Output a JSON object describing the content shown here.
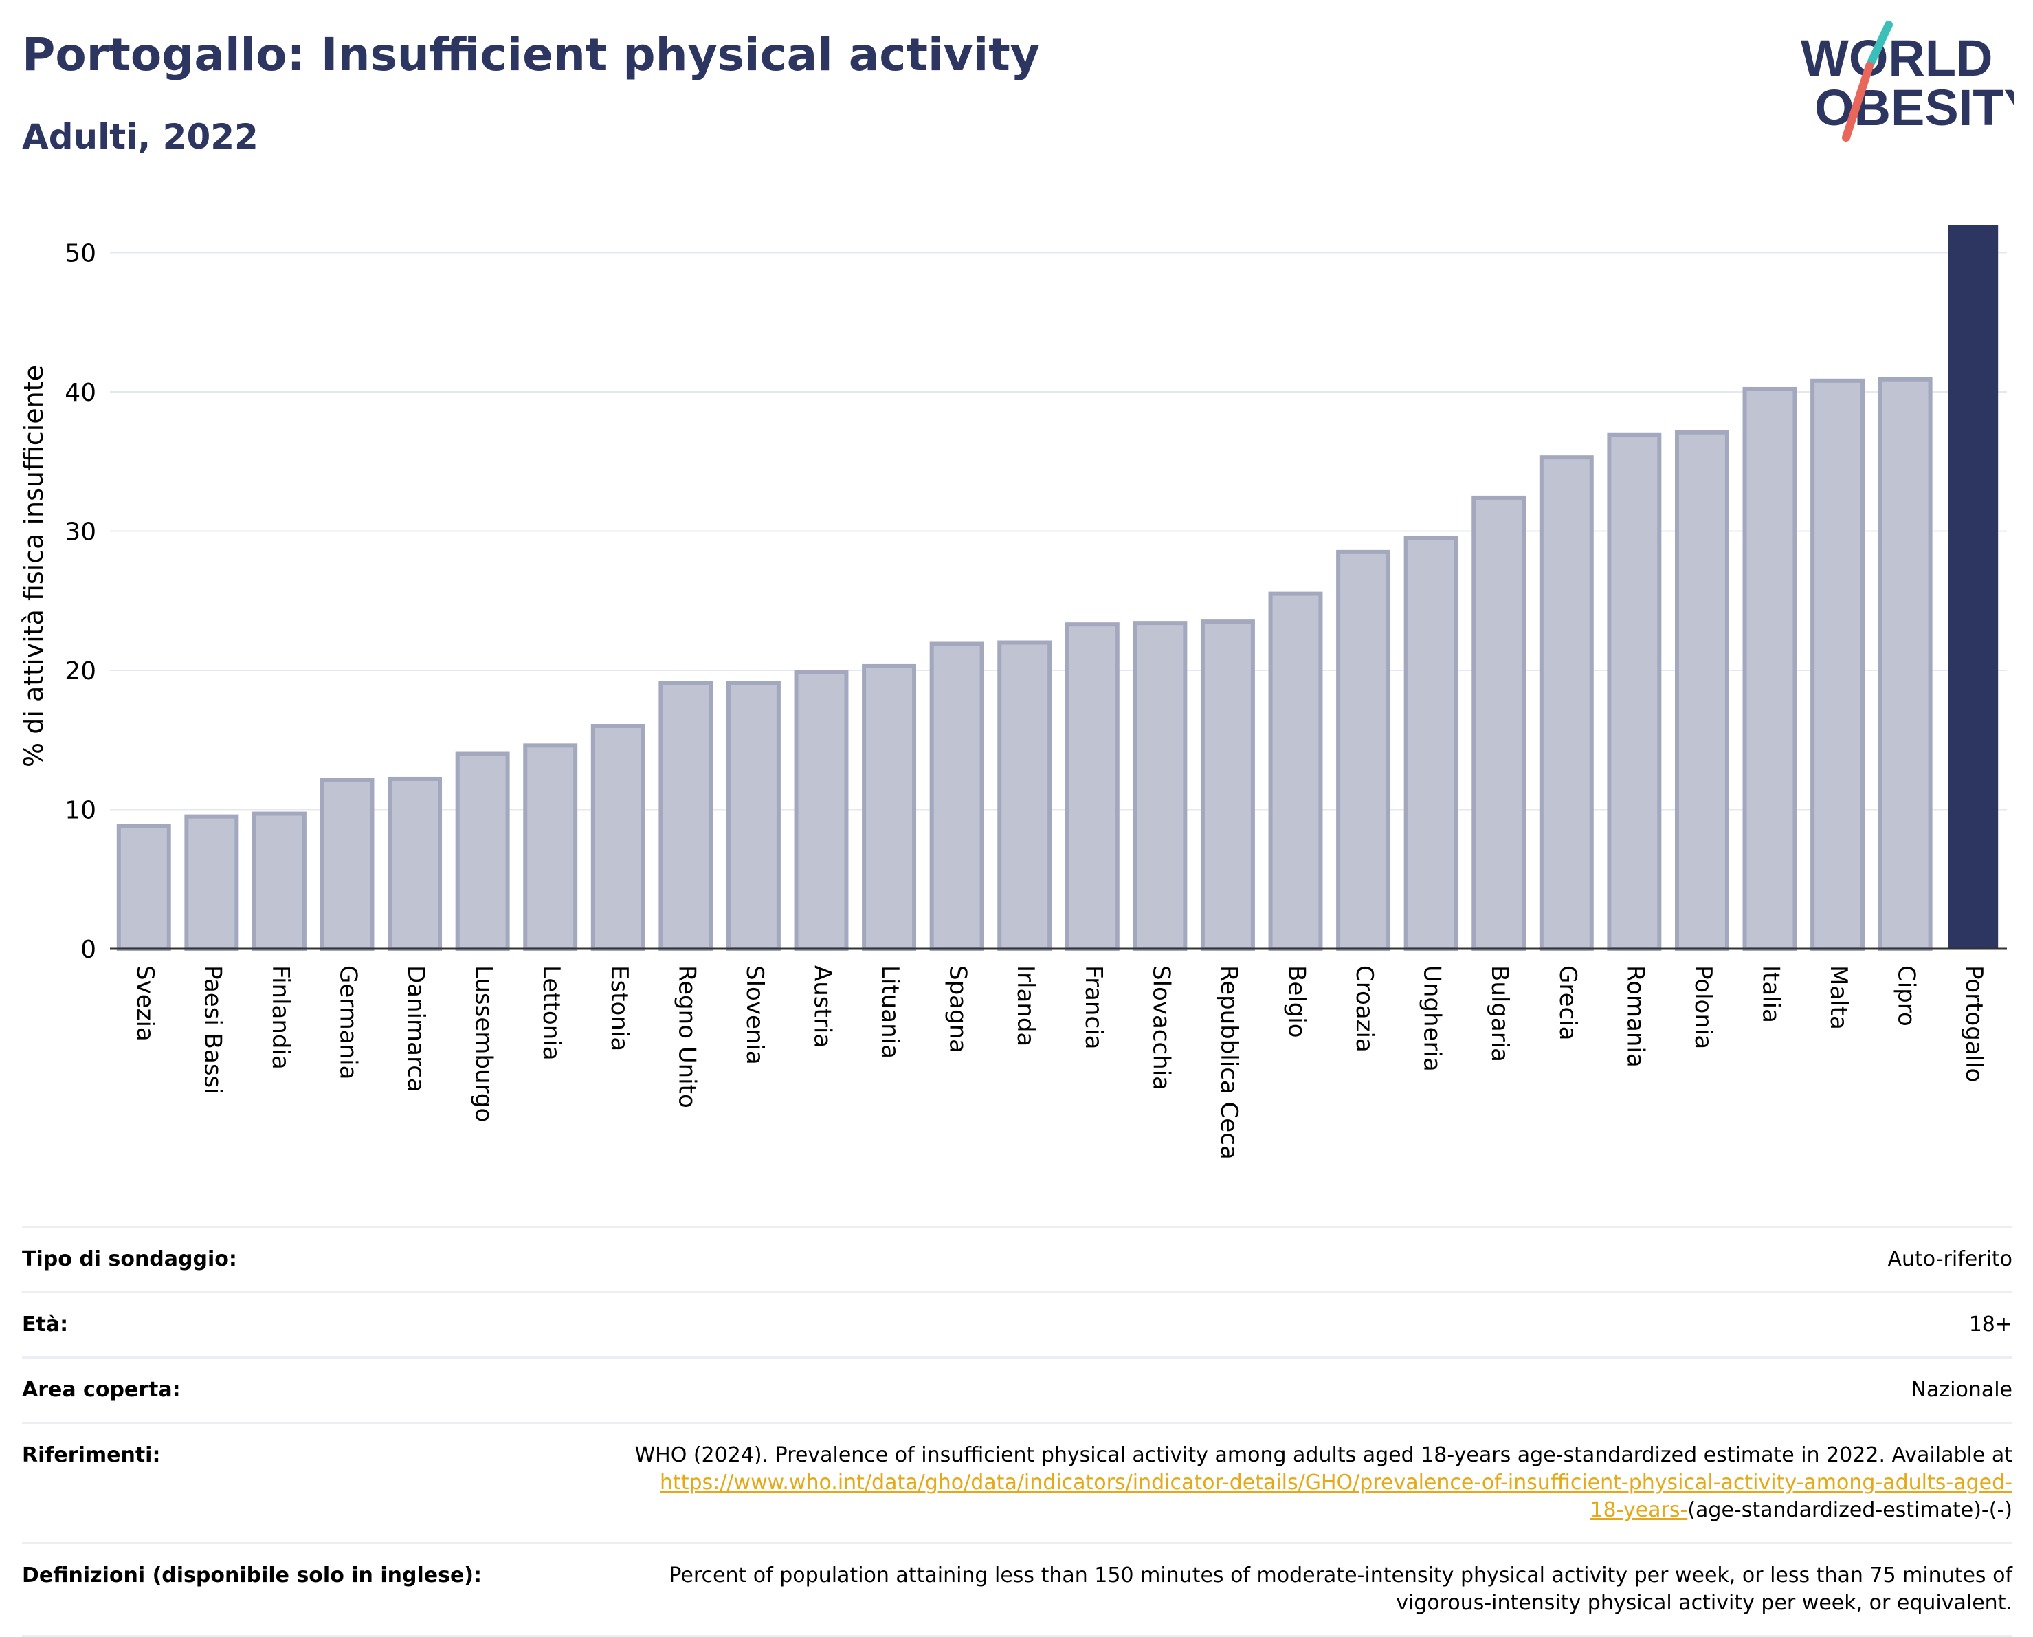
{
  "header": {
    "title": "Portogallo: Insufficient physical activity",
    "subtitle": "Adulti, 2022"
  },
  "logo": {
    "line1": "WORLD",
    "line2": "OBESITY",
    "colors": {
      "text": "#2d3660",
      "slash_teal": "#3bbfb8",
      "slash_coral": "#e8665a"
    }
  },
  "chart_data": {
    "type": "bar",
    "ylabel": "% di attività fisica insufficiente",
    "xlabel": "",
    "ylim": [
      0,
      52
    ],
    "yticks": [
      0,
      10,
      20,
      30,
      40,
      50
    ],
    "grid": true,
    "categories": [
      "Svezia",
      "Paesi Bassi",
      "Finlandia",
      "Germania",
      "Danimarca",
      "Lussemburgo",
      "Lettonia",
      "Estonia",
      "Regno Unito",
      "Slovenia",
      "Austria",
      "Lituania",
      "Spagna",
      "Irlanda",
      "Francia",
      "Slovacchia",
      "Repubblica Ceca",
      "Belgio",
      "Croazia",
      "Ungheria",
      "Bulgaria",
      "Grecia",
      "Romania",
      "Polonia",
      "Italia",
      "Malta",
      "Cipro",
      "Portogallo"
    ],
    "values": [
      8.8,
      9.5,
      9.7,
      12.1,
      12.2,
      14.0,
      14.6,
      16.0,
      19.1,
      19.1,
      19.9,
      20.3,
      21.9,
      22.0,
      23.3,
      23.4,
      23.5,
      25.5,
      28.5,
      29.5,
      32.4,
      35.3,
      36.9,
      37.1,
      40.2,
      40.8,
      40.9,
      52.0
    ],
    "highlight": "Portogallo",
    "colors": {
      "bar": "#c0c3d2",
      "bar_edge": "#a3a8be",
      "highlight": "#2d3660",
      "grid": "#e6e8ef"
    }
  },
  "info": {
    "rows": [
      {
        "label": "Tipo di sondaggio:",
        "value": "Auto-riferito"
      },
      {
        "label": "Età:",
        "value": "18+"
      },
      {
        "label": "Area coperta:",
        "value": "Nazionale"
      }
    ],
    "references": {
      "label": "Riferimenti:",
      "text": "WHO (2024). Prevalence of insufficient physical activity among adults aged 18-years age-standardized estimate in 2022. Available at",
      "link_line1": "https://www.who.int/data/gho/data/indicators/indicator-details/GHO/prevalence-of-insufficient-physical-activity-among-adults-aged-",
      "link_line2": "18-years-",
      "suffix": "(age-standardized-estimate)-(-)"
    },
    "definitions": {
      "label": "Definizioni (disponibile solo in inglese):",
      "line1": "Percent of population attaining less than 150 minutes of moderate-intensity physical activity per week, or less than 75 minutes of",
      "line2": "vigorous-intensity physical activity per week, or equivalent."
    }
  }
}
